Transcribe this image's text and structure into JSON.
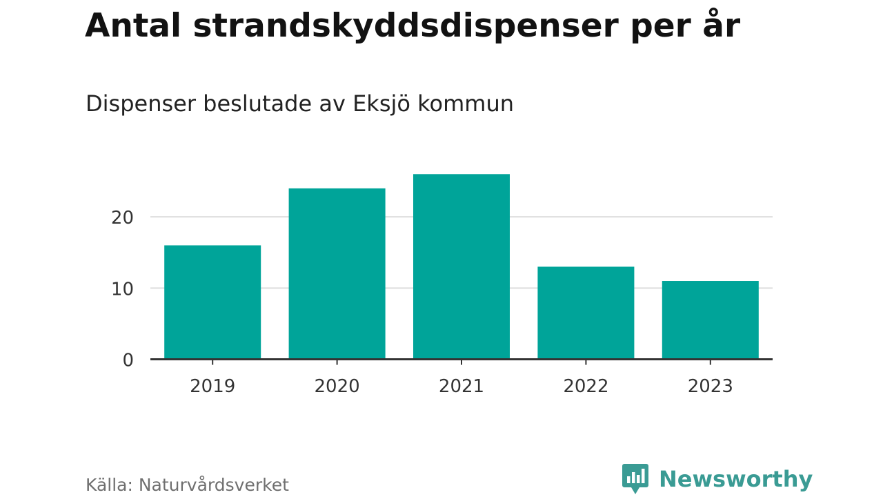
{
  "header": {
    "title": "Antal strandskyddsdispenser per år",
    "subtitle": "Dispenser beslutade av Eksjö kommun"
  },
  "chart_data": {
    "type": "bar",
    "title": "Antal strandskyddsdispenser per år",
    "subtitle": "Dispenser beslutade av Eksjö kommun",
    "xlabel": "",
    "ylabel": "",
    "categories": [
      "2019",
      "2020",
      "2021",
      "2022",
      "2023"
    ],
    "values": [
      16,
      24,
      26,
      13,
      11
    ],
    "ylim": [
      0,
      30
    ],
    "yticks": [
      0,
      10,
      20
    ],
    "grid": true,
    "legend": "none",
    "bar_color": "#00a499"
  },
  "footer": {
    "source": "Källa: Naturvårdsverket",
    "brand": "Newsworthy",
    "brand_color": "#3a9b94",
    "brand_icon": "bar-chart-speech-bubble-icon"
  }
}
